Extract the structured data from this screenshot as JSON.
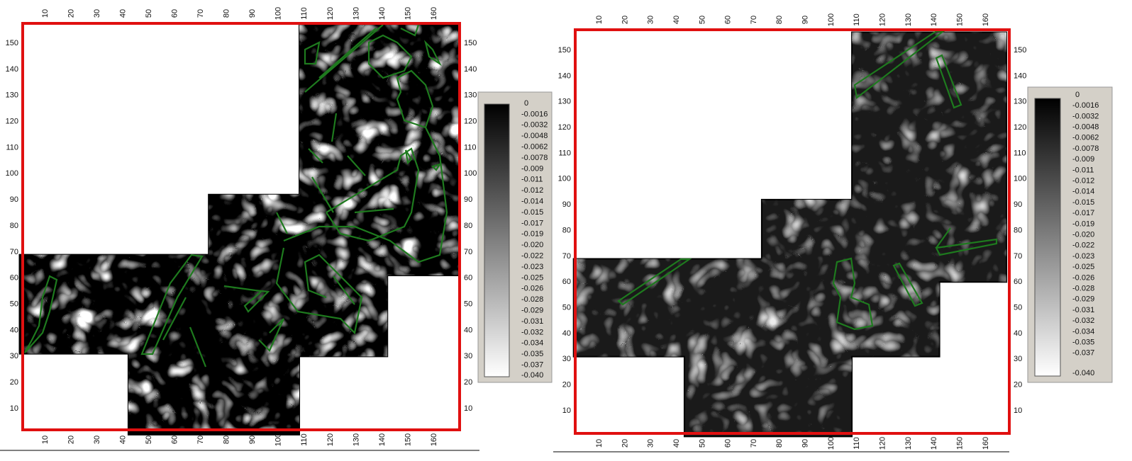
{
  "panels": [
    {
      "x_ticks": [
        10,
        20,
        30,
        40,
        50,
        60,
        70,
        80,
        90,
        100,
        110,
        120,
        130,
        140,
        150,
        160
      ],
      "y_ticks": [
        10,
        20,
        30,
        40,
        50,
        60,
        70,
        80,
        90,
        100,
        110,
        120,
        130,
        140,
        150
      ],
      "colorbar": {
        "labels": [
          "0",
          "-0.0016",
          "-0.0032",
          "-0.0048",
          "-0.0062",
          "-0.0078",
          "-0.009",
          "-0.011",
          "-0.012",
          "-0.014",
          "-0.015",
          "-0.017",
          "-0.019",
          "-0.020",
          "-0.022",
          "-0.023",
          "-0.025",
          "-0.026",
          "-0.028",
          "-0.029",
          "-0.031",
          "-0.032",
          "-0.034",
          "-0.035",
          "-0.037",
          "-0.040"
        ]
      }
    },
    {
      "x_ticks": [
        10,
        20,
        30,
        40,
        50,
        60,
        70,
        80,
        90,
        100,
        110,
        120,
        130,
        140,
        150,
        160
      ],
      "y_ticks": [
        10,
        20,
        30,
        40,
        50,
        60,
        70,
        80,
        90,
        100,
        110,
        120,
        130,
        140,
        150
      ],
      "colorbar": {
        "labels": [
          "0",
          "-0.0016",
          "-0.0032",
          "-0.0048",
          "-0.0062",
          "-0.0078",
          "-0.009",
          "-0.011",
          "-0.012",
          "-0.014",
          "-0.015",
          "-0.017",
          "-0.019",
          "-0.020",
          "-0.022",
          "-0.023",
          "-0.025",
          "-0.026",
          "-0.028",
          "-0.029",
          "-0.031",
          "-0.032",
          "-0.034",
          "-0.035",
          "-0.037",
          "-0.040"
        ]
      }
    }
  ]
}
